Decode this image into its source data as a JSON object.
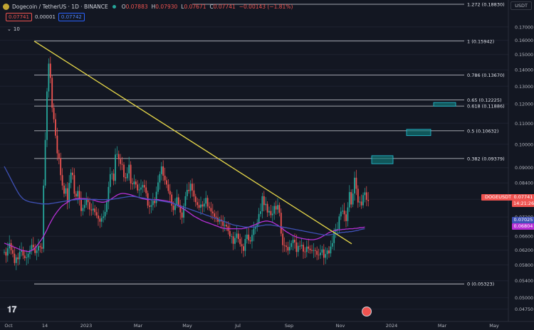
{
  "header": {
    "symbol_title": "Dogecoin / TetherUS · 1D · BINANCE",
    "ohlc": [
      {
        "k": "O",
        "v": "0.07883"
      },
      {
        "k": "H",
        "v": "0.07930"
      },
      {
        "k": "L",
        "v": "0.07671"
      },
      {
        "k": "C",
        "v": "0.07741"
      },
      {
        "k": "",
        "v": "−0.00143 (−1.81%)"
      }
    ]
  },
  "order_pills": {
    "sell": "0.07741",
    "spread": "0.00001",
    "buy": "0.07742"
  },
  "indicator_toggle": {
    "label": "10"
  },
  "currency_label": "USDT",
  "colors": {
    "background": "#131722",
    "up": "#26a69a",
    "down": "#ef5350",
    "trendline": "#e8d94a",
    "ma_purple": "#b730d6",
    "ma_blue": "#3f51b5",
    "fib_line": "#d1d4dc",
    "box": "#0f7a7a"
  },
  "chart_data": {
    "type": "candlestick",
    "title": "Dogecoin / TetherUS · 1D · BINANCE",
    "y_scale": "log",
    "ylim": [
      0.0455,
      0.18
    ],
    "x_axis_ticks": [
      "Oct",
      "14",
      "2023",
      "Mar",
      "May",
      "Jul",
      "Sep",
      "Nov",
      "2024",
      "Mar",
      "May"
    ],
    "y_axis_ticks": [
      "0.17000",
      "0.16000",
      "0.15000",
      "0.14000",
      "0.13000",
      "0.12000",
      "0.11000",
      "0.10000",
      "0.09000",
      "0.08400",
      "0.07800",
      "0.07200",
      "0.06600",
      "0.06200",
      "0.05800",
      "0.05400",
      "0.05000",
      "0.04750"
    ],
    "price_close": [
      0.0615,
      0.0605,
      0.0625,
      0.064,
      0.062,
      0.061,
      0.0585,
      0.06,
      0.0595,
      0.0615,
      0.062,
      0.0605,
      0.0598,
      0.06,
      0.061,
      0.062,
      0.0635,
      0.0628,
      0.0612,
      0.0619,
      0.0632,
      0.0628,
      0.0624,
      0.083,
      0.102,
      0.127,
      0.144,
      0.135,
      0.118,
      0.112,
      0.104,
      0.096,
      0.094,
      0.087,
      0.083,
      0.08,
      0.082,
      0.077,
      0.084,
      0.088,
      0.087,
      0.08,
      0.079,
      0.081,
      0.078,
      0.074,
      0.075,
      0.076,
      0.078,
      0.077,
      0.0745,
      0.0742,
      0.0748,
      0.0736,
      0.0725,
      0.0715,
      0.0705,
      0.0717,
      0.0722,
      0.0737,
      0.077,
      0.0825,
      0.0874,
      0.0876,
      0.0848,
      0.0955,
      0.0957,
      0.0935,
      0.0915,
      0.0912,
      0.0862,
      0.0858,
      0.0877,
      0.0912,
      0.0838,
      0.0835,
      0.0845,
      0.0834,
      0.0812,
      0.0815,
      0.0823,
      0.0832,
      0.0823,
      0.0802,
      0.0758,
      0.0754,
      0.076,
      0.0775,
      0.0767,
      0.0807,
      0.0842,
      0.0874,
      0.0905,
      0.0868,
      0.085,
      0.0834,
      0.081,
      0.0797,
      0.0758,
      0.0743,
      0.0762,
      0.0787,
      0.076,
      0.0735,
      0.0718,
      0.0757,
      0.0791,
      0.0814,
      0.081,
      0.0837,
      0.0812,
      0.079,
      0.077,
      0.076,
      0.0751,
      0.0762,
      0.0755,
      0.0765,
      0.0785,
      0.0755,
      0.075,
      0.0738,
      0.0732,
      0.0721,
      0.0718,
      0.0705,
      0.0712,
      0.0706,
      0.0692,
      0.0695,
      0.069,
      0.0676,
      0.066,
      0.066,
      0.0638,
      0.0655,
      0.0668,
      0.0652,
      0.0637,
      0.0631,
      0.0618,
      0.0652,
      0.0665,
      0.0648,
      0.0645,
      0.0664,
      0.0683,
      0.0688,
      0.07,
      0.073,
      0.0739,
      0.0791,
      0.076,
      0.0764,
      0.0735,
      0.074,
      0.0726,
      0.0731,
      0.0757,
      0.0745,
      0.076,
      0.0734,
      0.0668,
      0.0634,
      0.0633,
      0.0629,
      0.0619,
      0.0629,
      0.064,
      0.065,
      0.0642,
      0.0615,
      0.0632,
      0.0631,
      0.0635,
      0.0616,
      0.0615,
      0.063,
      0.0624,
      0.062,
      0.0618,
      0.062,
      0.0618,
      0.0607,
      0.0606,
      0.0613,
      0.0622,
      0.0599,
      0.0609,
      0.0619,
      0.0611,
      0.063,
      0.064,
      0.0674,
      0.0682,
      0.0682,
      0.0722,
      0.0738,
      0.0741,
      0.0729,
      0.0707,
      0.0752,
      0.0806,
      0.0762,
      0.0801,
      0.086,
      0.0818,
      0.0769,
      0.0772,
      0.0759,
      0.0795,
      0.0805,
      0.0778,
      0.0774
    ],
    "series": [
      {
        "values": [
          0.064,
          0.0638,
          0.0636,
          0.0634,
          0.0632,
          0.063,
          0.0628,
          0.0626,
          0.0624,
          0.0622,
          0.062,
          0.0619,
          0.0618,
          0.0617,
          0.0616,
          0.0617,
          0.0619,
          0.0622,
          0.0626,
          0.0632,
          0.0638,
          0.0645,
          0.0652,
          0.066,
          0.067,
          0.068,
          0.0692,
          0.0702,
          0.0712,
          0.0722,
          0.073,
          0.0738,
          0.0745,
          0.0752,
          0.0758,
          0.0762,
          0.0766,
          0.077,
          0.0774,
          0.0777,
          0.0779,
          0.0781,
          0.0782,
          0.0783,
          0.0783,
          0.0783,
          0.0783,
          0.0783,
          0.0782,
          0.0781,
          0.078,
          0.0779,
          0.0778,
          0.0776,
          0.0774,
          0.0772,
          0.0771,
          0.077,
          0.077,
          0.0771,
          0.0773,
          0.0776,
          0.0779,
          0.0783,
          0.0787,
          0.0791,
          0.0795,
          0.0798,
          0.08,
          0.0801,
          0.0801,
          0.08,
          0.0799,
          0.0798,
          0.0796,
          0.0794,
          0.0792,
          0.079,
          0.0788,
          0.0786,
          0.0784,
          0.0782,
          0.0781,
          0.078,
          0.0779,
          0.0779,
          0.0779,
          0.0779,
          0.0779,
          0.0779,
          0.0779,
          0.0778,
          0.0777,
          0.0776,
          0.0775,
          0.0774,
          0.0773,
          0.0771,
          0.0769,
          0.0766,
          0.0763,
          0.076,
          0.0757,
          0.0754,
          0.075,
          0.0746,
          0.0743,
          0.0739,
          0.0735,
          0.0731,
          0.0727,
          0.0723,
          0.072,
          0.0717,
          0.0714,
          0.0711,
          0.0708,
          0.0706,
          0.0704,
          0.0702,
          0.07,
          0.0698,
          0.0696,
          0.0694,
          0.0692,
          0.069,
          0.0688,
          0.0686,
          0.0685,
          0.0684,
          0.0683,
          0.0683,
          0.0683,
          0.0683,
          0.0683,
          0.0683,
          0.0683,
          0.0683,
          0.0683,
          0.0683,
          0.0684,
          0.0685,
          0.0686,
          0.0688,
          0.069,
          0.0692,
          0.0694,
          0.0696,
          0.0699,
          0.0701,
          0.0703,
          0.0705,
          0.0706,
          0.0707,
          0.0707,
          0.0706,
          0.0705,
          0.0703,
          0.07,
          0.0697,
          0.0694,
          0.069,
          0.0686,
          0.0682,
          0.0678,
          0.0674,
          0.0671,
          0.0668,
          0.0665,
          0.0662,
          0.066,
          0.0658,
          0.0656,
          0.0655,
          0.0654,
          0.0653,
          0.0652,
          0.0651,
          0.0651,
          0.065,
          0.065,
          0.065,
          0.0651,
          0.0652,
          0.0654,
          0.0656,
          0.0659,
          0.0662,
          0.0665,
          0.0668,
          0.0671,
          0.0673,
          0.0675,
          0.0677,
          0.0678,
          0.0679,
          0.068,
          0.068,
          0.0681,
          0.0681,
          0.0682,
          0.0682,
          0.0683,
          0.0683,
          0.0683,
          0.0684,
          0.0684,
          0.0685,
          0.0686,
          0.0686,
          0.0687,
          0.0688
        ]
      },
      {
        "values": [
          0.0905,
          0.0892,
          0.0879,
          0.0866,
          0.0853,
          0.084,
          0.0828,
          0.0816,
          0.0805,
          0.0795,
          0.0788,
          0.0782,
          0.0778,
          0.0775,
          0.0773,
          0.0771,
          0.077,
          0.0769,
          0.0768,
          0.0767,
          0.0766,
          0.0765,
          0.0764,
          0.0764,
          0.0764,
          0.0764,
          0.0764,
          0.0765,
          0.0766,
          0.0767,
          0.0768,
          0.0769,
          0.077,
          0.0771,
          0.0772,
          0.0773,
          0.0774,
          0.0775,
          0.0776,
          0.0777,
          0.0778,
          0.0778,
          0.0779,
          0.0779,
          0.078,
          0.078,
          0.078,
          0.078,
          0.078,
          0.078,
          0.078,
          0.078,
          0.078,
          0.078,
          0.078,
          0.0779,
          0.0779,
          0.0779,
          0.0779,
          0.0779,
          0.0779,
          0.0779,
          0.0779,
          0.078,
          0.0781,
          0.0782,
          0.0783,
          0.0784,
          0.0785,
          0.0786,
          0.0787,
          0.0788,
          0.0789,
          0.079,
          0.079,
          0.079,
          0.079,
          0.0789,
          0.0788,
          0.0787,
          0.0786,
          0.0785,
          0.0784,
          0.0783,
          0.0782,
          0.0781,
          0.078,
          0.0779,
          0.0778,
          0.0777,
          0.0776,
          0.0775,
          0.0774,
          0.0773,
          0.0772,
          0.0771,
          0.077,
          0.0769,
          0.0767,
          0.0765,
          0.0763,
          0.0761,
          0.0759,
          0.0757,
          0.0755,
          0.0753,
          0.0751,
          0.0749,
          0.0747,
          0.0745,
          0.0743,
          0.0741,
          0.0739,
          0.0737,
          0.0735,
          0.0733,
          0.0731,
          0.0729,
          0.0727,
          0.0725,
          0.0723,
          0.0721,
          0.0719,
          0.0717,
          0.0715,
          0.0713,
          0.0711,
          0.0709,
          0.0707,
          0.0705,
          0.0703,
          0.0701,
          0.0699,
          0.0697,
          0.0695,
          0.0694,
          0.0693,
          0.0692,
          0.0691,
          0.069,
          0.0689,
          0.0688,
          0.0688,
          0.0688,
          0.0688,
          0.0688,
          0.0688,
          0.0689,
          0.069,
          0.0691,
          0.0692,
          0.0693,
          0.0694,
          0.0695,
          0.0695,
          0.0695,
          0.0695,
          0.0694,
          0.0693,
          0.0692,
          0.0691,
          0.069,
          0.0689,
          0.0688,
          0.0687,
          0.0686,
          0.0685,
          0.0684,
          0.0683,
          0.0682,
          0.0681,
          0.068,
          0.0679,
          0.0678,
          0.0677,
          0.0676,
          0.0675,
          0.0674,
          0.0673,
          0.0672,
          0.0671,
          0.067,
          0.0669,
          0.0668,
          0.0667,
          0.0666,
          0.0665,
          0.0664,
          0.0664,
          0.0664,
          0.0664,
          0.0665,
          0.0666,
          0.0667,
          0.0668,
          0.0669,
          0.067,
          0.0671,
          0.0672,
          0.0672,
          0.0673,
          0.0673,
          0.0674,
          0.0674,
          0.0675,
          0.0676,
          0.0677,
          0.0678,
          0.068,
          0.0681,
          0.0682,
          0.0683
        ]
      }
    ],
    "fib_levels": [
      {
        "label": "1 (0.15942)",
        "price": 0.15942
      },
      {
        "label": "0.786 (0.13670)",
        "price": 0.1367
      },
      {
        "label": "0.65 (0.12225)",
        "price": 0.12225
      },
      {
        "label": "0.618 (0.11886)",
        "price": 0.11886
      },
      {
        "label": "0.5 (0.10632)",
        "price": 0.10632
      },
      {
        "label": "0.382 (0.09379)",
        "price": 0.09379
      },
      {
        "label": "0 (0.05323)",
        "price": 0.05323
      },
      {
        "label": "1.272 (0.18830)",
        "price": 0.1883
      }
    ],
    "trendline": {
      "from_price": 0.15942,
      "to_price": 0.0638
    },
    "target_boxes": [
      {
        "price_low": 0.0916,
        "price_high": 0.095
      },
      {
        "price_low": 0.104,
        "price_high": 0.107
      },
      {
        "price_low": 0.1188,
        "price_high": 0.1208
      }
    ],
    "price_badges": [
      {
        "label": "DOGEUSDT",
        "color": "#ef5350"
      },
      {
        "label": "0.07741",
        "color": "#ef5350"
      },
      {
        "label": "14:21:26",
        "color": "#ef5350"
      },
      {
        "label": "0.07025",
        "color": "#3f51b5"
      },
      {
        "label": "0.06804",
        "color": "#b730d6"
      }
    ]
  }
}
